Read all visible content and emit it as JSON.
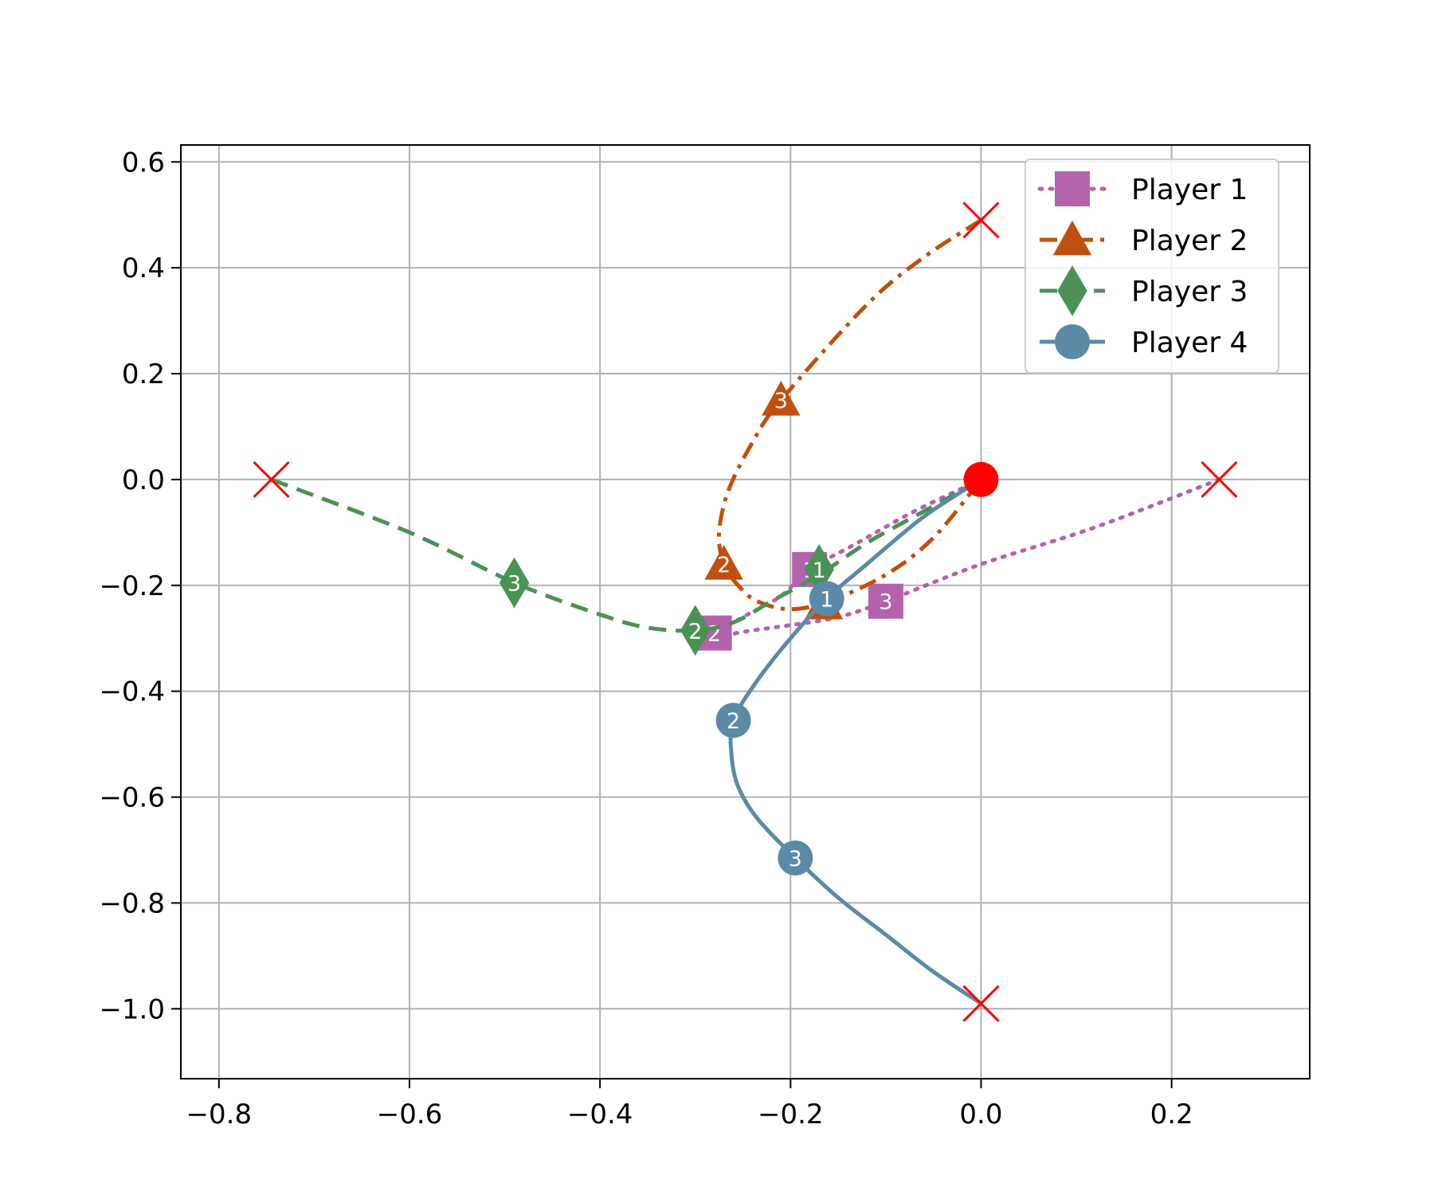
{
  "chart_data": {
    "type": "line",
    "title": "",
    "xlabel": "",
    "ylabel": "",
    "xlim": [
      -0.84,
      0.345
    ],
    "ylim": [
      -1.132,
      0.632
    ],
    "xticks": [
      -0.8,
      -0.6,
      -0.4,
      -0.2,
      0.0,
      0.2
    ],
    "yticks": [
      0.6,
      0.4,
      0.2,
      0.0,
      -0.2,
      -0.4,
      -0.6,
      -0.8,
      -1.0
    ],
    "xtick_labels": [
      "−0.8",
      "−0.6",
      "−0.4",
      "−0.2",
      "0.0",
      "0.2"
    ],
    "ytick_labels": [
      "0.6",
      "0.4",
      "0.2",
      "0.0",
      "−0.2",
      "−0.4",
      "−0.6",
      "−0.8",
      "−1.0"
    ],
    "grid": true,
    "legend_position": "upper right",
    "target": {
      "x": 0.0,
      "y": 0.0,
      "color": "#ff0000"
    },
    "series": [
      {
        "name": "Player 1",
        "color": "#b462ae",
        "line_style": "dotted",
        "marker": "square",
        "start": {
          "x": 0.25,
          "y": 0.0
        },
        "path": [
          [
            0.25,
            0.0
          ],
          [
            0.12,
            -0.09
          ],
          [
            0.0,
            -0.16
          ],
          [
            -0.1,
            -0.23
          ],
          [
            -0.15,
            -0.26
          ],
          [
            -0.2,
            -0.275
          ],
          [
            -0.24,
            -0.285
          ],
          [
            -0.28,
            -0.295
          ],
          [
            -0.25,
            -0.26
          ],
          [
            -0.21,
            -0.22
          ],
          [
            -0.18,
            -0.17
          ],
          [
            -0.13,
            -0.12
          ],
          [
            -0.07,
            -0.06
          ],
          [
            0.0,
            0.0
          ]
        ],
        "markers": [
          {
            "label": "3",
            "x": -0.1,
            "y": -0.23
          },
          {
            "label": "2",
            "x": -0.28,
            "y": -0.29
          },
          {
            "label": "1",
            "x": -0.18,
            "y": -0.17
          }
        ]
      },
      {
        "name": "Player 2",
        "color": "#c0500e",
        "line_style": "dashdot",
        "marker": "triangle",
        "start": {
          "x": 0.0,
          "y": 0.49
        },
        "path": [
          [
            0.0,
            0.49
          ],
          [
            -0.06,
            0.42
          ],
          [
            -0.12,
            0.33
          ],
          [
            -0.21,
            0.15
          ],
          [
            -0.24,
            0.07
          ],
          [
            -0.265,
            -0.02
          ],
          [
            -0.275,
            -0.1
          ],
          [
            -0.27,
            -0.16
          ],
          [
            -0.255,
            -0.2
          ],
          [
            -0.235,
            -0.23
          ],
          [
            -0.2,
            -0.245
          ],
          [
            -0.16,
            -0.23
          ],
          [
            -0.1,
            -0.18
          ],
          [
            -0.05,
            -0.11
          ],
          [
            0.0,
            0.0
          ]
        ],
        "markers": [
          {
            "label": "3",
            "x": -0.21,
            "y": 0.15
          },
          {
            "label": "2",
            "x": -0.27,
            "y": -0.16
          },
          {
            "label": "1",
            "x": -0.165,
            "y": -0.235
          }
        ]
      },
      {
        "name": "Player 3",
        "color": "#4a9254",
        "line_style": "dashed",
        "marker": "diamond",
        "start": {
          "x": -0.745,
          "y": 0.0
        },
        "path": [
          [
            -0.745,
            0.0
          ],
          [
            -0.6,
            -0.1
          ],
          [
            -0.49,
            -0.195
          ],
          [
            -0.4,
            -0.255
          ],
          [
            -0.35,
            -0.28
          ],
          [
            -0.3,
            -0.285
          ],
          [
            -0.26,
            -0.27
          ],
          [
            -0.22,
            -0.23
          ],
          [
            -0.17,
            -0.18
          ],
          [
            -0.12,
            -0.12
          ],
          [
            -0.06,
            -0.06
          ],
          [
            0.0,
            0.0
          ]
        ],
        "markers": [
          {
            "label": "3",
            "x": -0.49,
            "y": -0.195
          },
          {
            "label": "2",
            "x": -0.3,
            "y": -0.285
          },
          {
            "label": "1",
            "x": -0.17,
            "y": -0.17
          }
        ]
      },
      {
        "name": "Player 4",
        "color": "#5b8aa7",
        "line_style": "solid",
        "marker": "circle",
        "start": {
          "x": 0.0,
          "y": -0.99
        },
        "path": [
          [
            0.0,
            -0.99
          ],
          [
            -0.05,
            -0.93
          ],
          [
            -0.1,
            -0.86
          ],
          [
            -0.15,
            -0.79
          ],
          [
            -0.195,
            -0.715
          ],
          [
            -0.235,
            -0.64
          ],
          [
            -0.255,
            -0.58
          ],
          [
            -0.262,
            -0.52
          ],
          [
            -0.26,
            -0.455
          ],
          [
            -0.235,
            -0.38
          ],
          [
            -0.2,
            -0.3
          ],
          [
            -0.162,
            -0.225
          ],
          [
            -0.12,
            -0.16
          ],
          [
            -0.06,
            -0.07
          ],
          [
            0.0,
            0.0
          ]
        ],
        "markers": [
          {
            "label": "3",
            "x": -0.195,
            "y": -0.715
          },
          {
            "label": "2",
            "x": -0.26,
            "y": -0.455
          },
          {
            "label": "1",
            "x": -0.162,
            "y": -0.225
          }
        ]
      }
    ]
  }
}
